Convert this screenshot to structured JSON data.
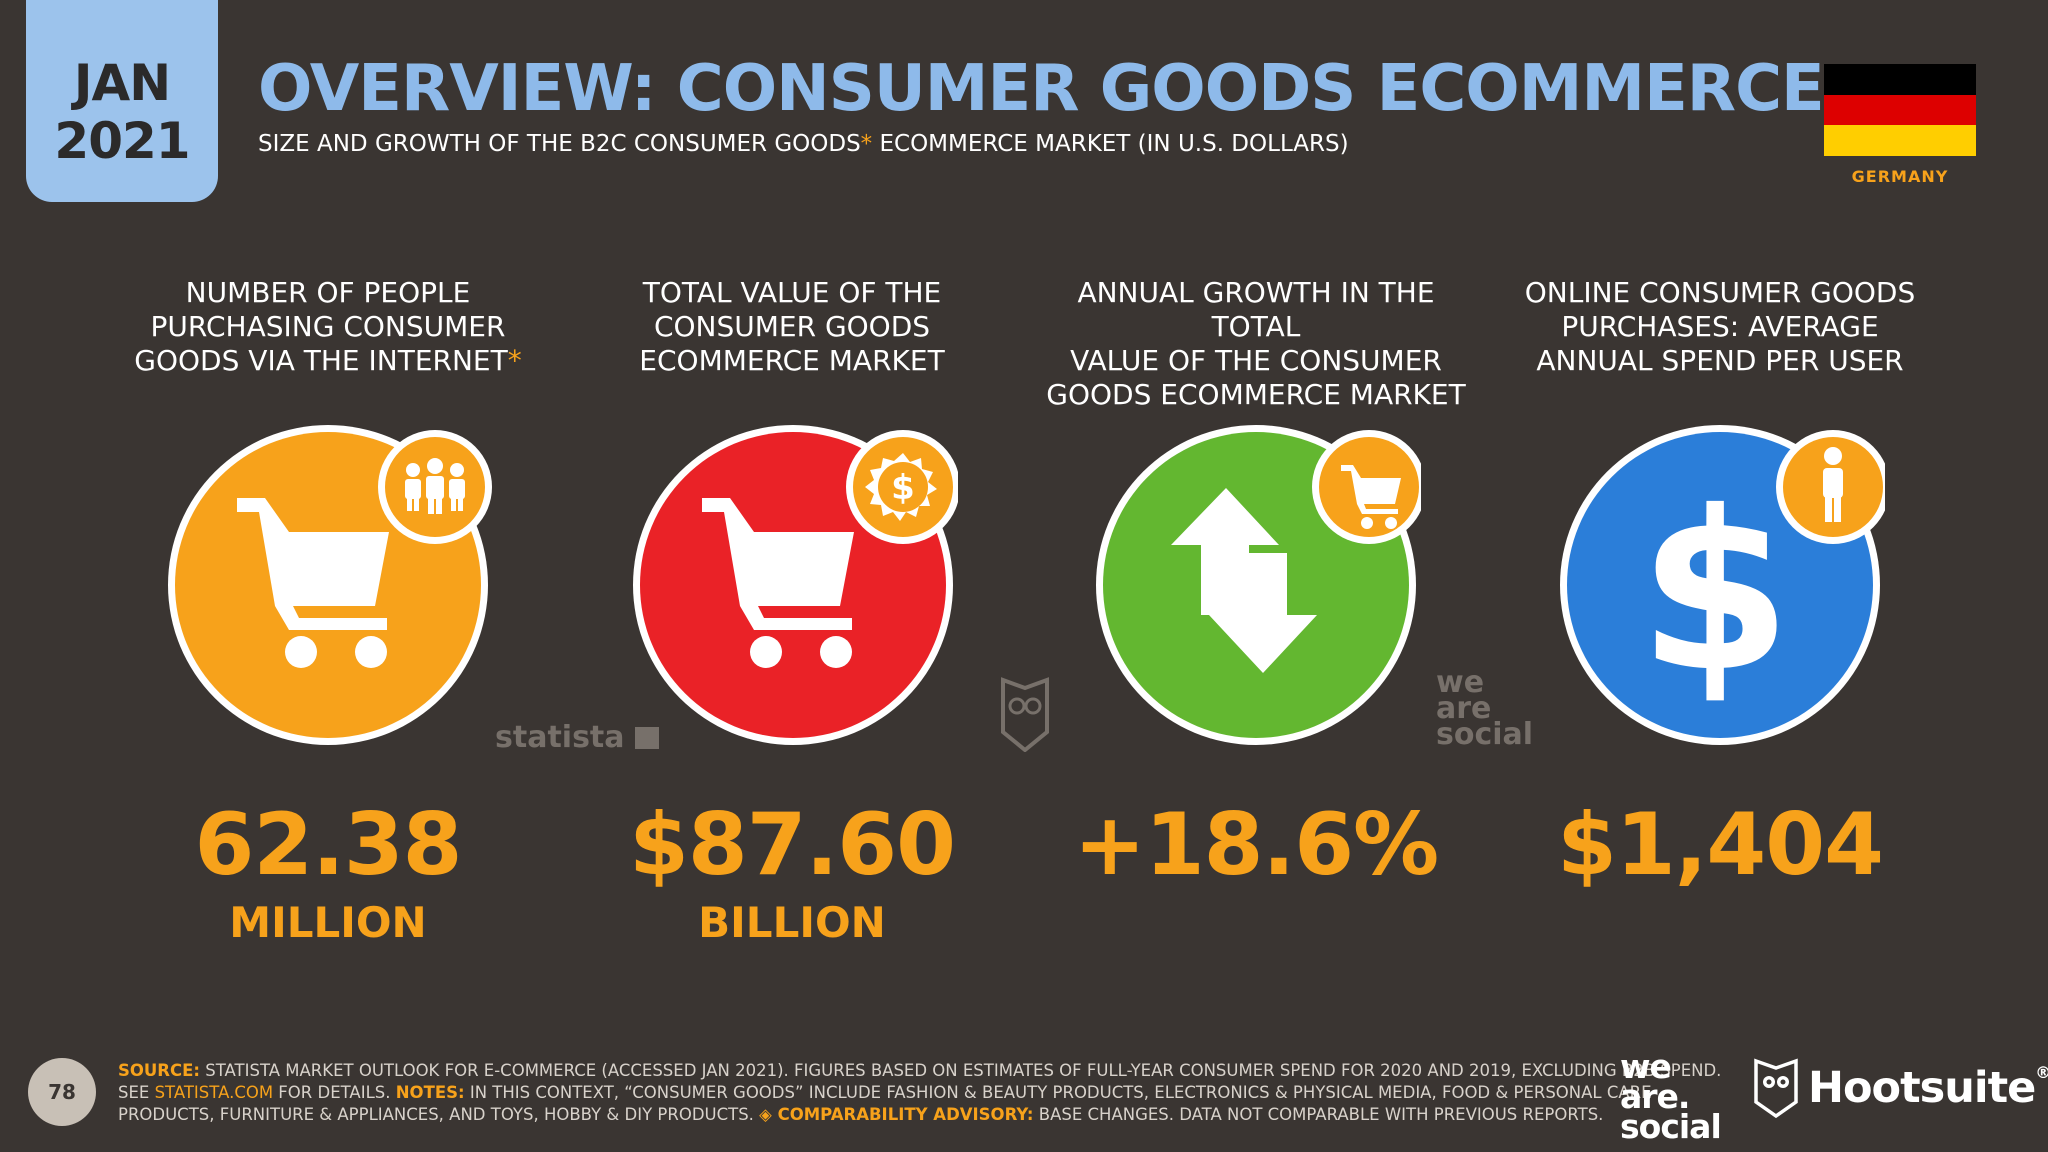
{
  "header": {
    "month": "JAN",
    "year": "2021",
    "title": "OVERVIEW: CONSUMER GOODS ECOMMERCE",
    "subtitle_pre": "SIZE AND GROWTH OF THE B2C CONSUMER GOODS",
    "subtitle_ast": "*",
    "subtitle_post": " ECOMMERCE MARKET (IN U.S. DOLLARS)",
    "country": "GERMANY"
  },
  "colors": {
    "orange": "#f7a21b",
    "red": "#ea2227",
    "green": "#63b730",
    "blue": "#2b7ed9",
    "title_blue": "#8ebaea",
    "background": "#3a3532"
  },
  "stats": [
    {
      "label_line1": "NUMBER OF PEOPLE",
      "label_line2": "PURCHASING CONSUMER",
      "label_line3": "GOODS VIA THE INTERNET",
      "label_ast": "*",
      "value": "62.38",
      "unit": "MILLION",
      "icon": "shopping-cart-icon",
      "badge_icon": "people-icon"
    },
    {
      "label_line1": "TOTAL VALUE OF THE",
      "label_line2": "CONSUMER GOODS",
      "label_line3": "ECOMMERCE MARKET",
      "value": "$87.60",
      "unit": "BILLION",
      "icon": "shopping-cart-icon",
      "badge_icon": "dollar-badge-icon"
    },
    {
      "label_line1": "ANNUAL GROWTH IN THE TOTAL",
      "label_line2": "VALUE OF THE CONSUMER",
      "label_line3": "GOODS ECOMMERCE MARKET",
      "value": "+18.6%",
      "unit": "",
      "icon": "up-down-arrows-icon",
      "badge_icon": "shopping-cart-icon"
    },
    {
      "label_line1": "ONLINE CONSUMER GOODS",
      "label_line2": "PURCHASES: AVERAGE",
      "label_line3": "ANNUAL SPEND PER USER",
      "value": "$1,404",
      "unit": "",
      "icon": "dollar-icon",
      "badge_icon": "person-icon"
    }
  ],
  "watermarks": {
    "statista": "statista",
    "we": "we",
    "are": "are",
    "social": "social"
  },
  "footer": {
    "page": "78",
    "source_key": "SOURCE:",
    "source_text": " STATISTA MARKET OUTLOOK FOR E-COMMERCE (ACCESSED JAN 2021). FIGURES BASED ON ESTIMATES OF FULL-YEAR CONSUMER SPEND FOR 2020 AND 2019, EXCLUDING B2B SPEND.",
    "see_text": "SEE ",
    "link_text": "STATISTA.COM",
    "for_details": " FOR DETAILS. ",
    "notes_key": "NOTES:",
    "notes_text": " IN THIS CONTEXT, “CONSUMER GOODS” INCLUDE FASHION & BEAUTY PRODUCTS, ELECTRONICS & PHYSICAL MEDIA, FOOD & PERSONAL CARE",
    "notes_text2": "PRODUCTS, FURNITURE & APPLIANCES, AND TOYS, HOBBY & DIY PRODUCTS. ",
    "advisory_key": "◈ COMPARABILITY ADVISORY:",
    "advisory_text": " BASE CHANGES. DATA NOT COMPARABLE WITH PREVIOUS REPORTS.",
    "logo_we": "we",
    "logo_are": "are.",
    "logo_social": "social",
    "hootsuite": "Hootsuite",
    "reg": "®"
  }
}
